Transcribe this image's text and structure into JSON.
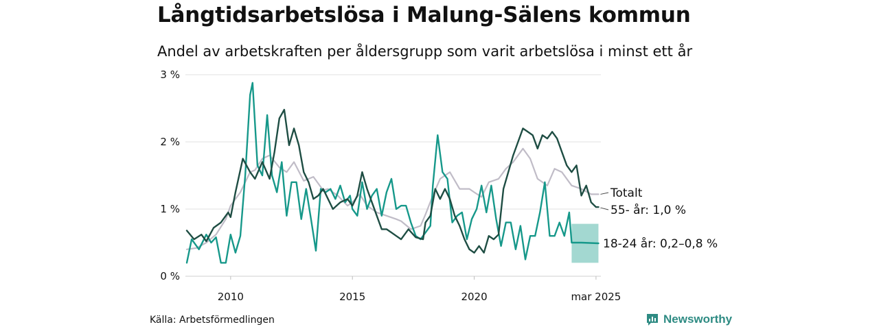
{
  "title": "Långtidsarbetslösa i Malung-Sälens kommun",
  "subtitle": "Andel av arbetskraften per åldersgrupp som varit arbetslösa i minst ett år",
  "source": "Källa: Arbetsförmedlingen",
  "brand": {
    "name": "Newsworthy",
    "icon": "bar-chart-speech-bubble-icon",
    "color": "#2e8b83"
  },
  "chart_data": {
    "type": "line",
    "ylim": [
      0,
      3
    ],
    "xlim": [
      2008.2,
      2025.2
    ],
    "y_ticks": [
      {
        "value": 0,
        "label": "0 %"
      },
      {
        "value": 1,
        "label": "1 %"
      },
      {
        "value": 2,
        "label": "2 %"
      },
      {
        "value": 3,
        "label": "3 %"
      }
    ],
    "x_ticks": [
      {
        "value": 2010,
        "label": "2010"
      },
      {
        "value": 2015,
        "label": "2015"
      },
      {
        "value": 2020,
        "label": "2020"
      },
      {
        "value": 2025,
        "label": "mar 2025"
      }
    ],
    "grid": true,
    "series": [
      {
        "id": "totalt",
        "name": "Totalt",
        "label": "Totalt",
        "color": "#c0bcc7",
        "points": [
          [
            2008.2,
            0.4
          ],
          [
            2008.6,
            0.42
          ],
          [
            2009.0,
            0.5
          ],
          [
            2009.4,
            0.62
          ],
          [
            2009.8,
            0.85
          ],
          [
            2010.0,
            1.05
          ],
          [
            2010.4,
            1.25
          ],
          [
            2010.8,
            1.55
          ],
          [
            2011.0,
            1.58
          ],
          [
            2011.3,
            1.75
          ],
          [
            2011.6,
            1.8
          ],
          [
            2012.0,
            1.62
          ],
          [
            2012.3,
            1.55
          ],
          [
            2012.6,
            1.7
          ],
          [
            2013.0,
            1.42
          ],
          [
            2013.4,
            1.48
          ],
          [
            2013.8,
            1.28
          ],
          [
            2014.0,
            1.3
          ],
          [
            2014.4,
            1.2
          ],
          [
            2014.8,
            1.05
          ],
          [
            2015.0,
            1.1
          ],
          [
            2015.3,
            1.22
          ],
          [
            2015.6,
            1.05
          ],
          [
            2016.0,
            0.95
          ],
          [
            2016.4,
            0.9
          ],
          [
            2016.8,
            0.85
          ],
          [
            2017.0,
            0.82
          ],
          [
            2017.4,
            0.7
          ],
          [
            2017.8,
            0.75
          ],
          [
            2018.0,
            0.92
          ],
          [
            2018.3,
            1.2
          ],
          [
            2018.6,
            1.45
          ],
          [
            2019.0,
            1.55
          ],
          [
            2019.4,
            1.3
          ],
          [
            2019.8,
            1.3
          ],
          [
            2020.0,
            1.25
          ],
          [
            2020.3,
            1.18
          ],
          [
            2020.6,
            1.4
          ],
          [
            2021.0,
            1.45
          ],
          [
            2021.3,
            1.6
          ],
          [
            2021.6,
            1.7
          ],
          [
            2022.0,
            1.9
          ],
          [
            2022.3,
            1.75
          ],
          [
            2022.6,
            1.45
          ],
          [
            2023.0,
            1.35
          ],
          [
            2023.3,
            1.6
          ],
          [
            2023.6,
            1.55
          ],
          [
            2024.0,
            1.35
          ],
          [
            2024.4,
            1.3
          ],
          [
            2024.8,
            1.22
          ],
          [
            2025.1,
            1.22
          ]
        ]
      },
      {
        "id": "55plus",
        "name": "55- år",
        "label": "55- år: 1,0 %",
        "color": "#1e4d43",
        "points": [
          [
            2008.2,
            0.68
          ],
          [
            2008.5,
            0.55
          ],
          [
            2008.8,
            0.62
          ],
          [
            2009.0,
            0.52
          ],
          [
            2009.3,
            0.72
          ],
          [
            2009.6,
            0.8
          ],
          [
            2009.9,
            0.95
          ],
          [
            2010.0,
            0.88
          ],
          [
            2010.2,
            1.25
          ],
          [
            2010.5,
            1.75
          ],
          [
            2010.8,
            1.55
          ],
          [
            2011.0,
            1.45
          ],
          [
            2011.3,
            1.7
          ],
          [
            2011.6,
            1.45
          ],
          [
            2011.8,
            1.85
          ],
          [
            2012.0,
            2.35
          ],
          [
            2012.2,
            2.48
          ],
          [
            2012.4,
            1.95
          ],
          [
            2012.6,
            2.2
          ],
          [
            2012.8,
            1.95
          ],
          [
            2013.0,
            1.55
          ],
          [
            2013.2,
            1.4
          ],
          [
            2013.4,
            1.15
          ],
          [
            2013.6,
            1.2
          ],
          [
            2013.8,
            1.3
          ],
          [
            2014.0,
            1.15
          ],
          [
            2014.2,
            1.0
          ],
          [
            2014.5,
            1.1
          ],
          [
            2014.8,
            1.15
          ],
          [
            2015.0,
            1.05
          ],
          [
            2015.2,
            1.2
          ],
          [
            2015.4,
            1.55
          ],
          [
            2015.6,
            1.3
          ],
          [
            2015.8,
            1.1
          ],
          [
            2016.0,
            0.9
          ],
          [
            2016.2,
            0.7
          ],
          [
            2016.4,
            0.7
          ],
          [
            2016.6,
            0.65
          ],
          [
            2016.8,
            0.6
          ],
          [
            2017.0,
            0.55
          ],
          [
            2017.3,
            0.7
          ],
          [
            2017.6,
            0.58
          ],
          [
            2017.9,
            0.55
          ],
          [
            2018.0,
            0.8
          ],
          [
            2018.2,
            0.9
          ],
          [
            2018.4,
            1.3
          ],
          [
            2018.6,
            1.15
          ],
          [
            2018.8,
            1.3
          ],
          [
            2019.0,
            1.15
          ],
          [
            2019.2,
            0.9
          ],
          [
            2019.4,
            0.75
          ],
          [
            2019.6,
            0.55
          ],
          [
            2019.8,
            0.4
          ],
          [
            2020.0,
            0.35
          ],
          [
            2020.2,
            0.45
          ],
          [
            2020.4,
            0.35
          ],
          [
            2020.6,
            0.6
          ],
          [
            2020.8,
            0.55
          ],
          [
            2021.0,
            0.62
          ],
          [
            2021.2,
            1.3
          ],
          [
            2021.4,
            1.55
          ],
          [
            2021.6,
            1.8
          ],
          [
            2021.8,
            2.0
          ],
          [
            2022.0,
            2.2
          ],
          [
            2022.2,
            2.15
          ],
          [
            2022.4,
            2.1
          ],
          [
            2022.6,
            1.9
          ],
          [
            2022.8,
            2.1
          ],
          [
            2023.0,
            2.05
          ],
          [
            2023.2,
            2.15
          ],
          [
            2023.4,
            2.05
          ],
          [
            2023.6,
            1.85
          ],
          [
            2023.8,
            1.65
          ],
          [
            2024.0,
            1.55
          ],
          [
            2024.2,
            1.65
          ],
          [
            2024.4,
            1.2
          ],
          [
            2024.6,
            1.35
          ],
          [
            2024.8,
            1.1
          ],
          [
            2025.0,
            1.03
          ],
          [
            2025.1,
            1.03
          ]
        ]
      },
      {
        "id": "18-24",
        "name": "18-24 år",
        "label": "18-24 år: 0,2–0,8 %",
        "color": "#16988a",
        "points": [
          [
            2008.2,
            0.2
          ],
          [
            2008.4,
            0.55
          ],
          [
            2008.7,
            0.4
          ],
          [
            2009.0,
            0.62
          ],
          [
            2009.2,
            0.5
          ],
          [
            2009.4,
            0.58
          ],
          [
            2009.6,
            0.2
          ],
          [
            2009.8,
            0.2
          ],
          [
            2010.0,
            0.62
          ],
          [
            2010.2,
            0.35
          ],
          [
            2010.4,
            0.6
          ],
          [
            2010.6,
            1.5
          ],
          [
            2010.8,
            2.7
          ],
          [
            2010.9,
            2.88
          ],
          [
            2011.1,
            1.65
          ],
          [
            2011.3,
            1.5
          ],
          [
            2011.5,
            2.4
          ],
          [
            2011.7,
            1.5
          ],
          [
            2011.9,
            1.25
          ],
          [
            2012.1,
            1.7
          ],
          [
            2012.3,
            0.9
          ],
          [
            2012.5,
            1.4
          ],
          [
            2012.7,
            1.4
          ],
          [
            2012.9,
            0.85
          ],
          [
            2013.1,
            1.3
          ],
          [
            2013.3,
            0.85
          ],
          [
            2013.5,
            0.38
          ],
          [
            2013.7,
            1.3
          ],
          [
            2013.9,
            1.25
          ],
          [
            2014.1,
            1.3
          ],
          [
            2014.3,
            1.15
          ],
          [
            2014.5,
            1.35
          ],
          [
            2014.7,
            1.1
          ],
          [
            2014.9,
            1.2
          ],
          [
            2015.0,
            1.0
          ],
          [
            2015.2,
            0.9
          ],
          [
            2015.4,
            1.4
          ],
          [
            2015.6,
            1.0
          ],
          [
            2015.8,
            1.2
          ],
          [
            2016.0,
            1.3
          ],
          [
            2016.2,
            0.9
          ],
          [
            2016.4,
            1.25
          ],
          [
            2016.6,
            1.45
          ],
          [
            2016.8,
            1.0
          ],
          [
            2017.0,
            1.05
          ],
          [
            2017.2,
            1.05
          ],
          [
            2017.4,
            0.8
          ],
          [
            2017.6,
            0.6
          ],
          [
            2017.8,
            0.55
          ],
          [
            2018.0,
            0.65
          ],
          [
            2018.2,
            0.75
          ],
          [
            2018.3,
            1.35
          ],
          [
            2018.5,
            2.1
          ],
          [
            2018.7,
            1.55
          ],
          [
            2018.9,
            1.45
          ],
          [
            2019.1,
            0.8
          ],
          [
            2019.3,
            0.9
          ],
          [
            2019.5,
            0.95
          ],
          [
            2019.7,
            0.55
          ],
          [
            2019.9,
            0.85
          ],
          [
            2020.1,
            1.0
          ],
          [
            2020.3,
            1.35
          ],
          [
            2020.5,
            0.95
          ],
          [
            2020.7,
            1.35
          ],
          [
            2020.9,
            0.85
          ],
          [
            2021.1,
            0.45
          ],
          [
            2021.3,
            0.8
          ],
          [
            2021.5,
            0.8
          ],
          [
            2021.7,
            0.4
          ],
          [
            2021.9,
            0.75
          ],
          [
            2022.1,
            0.25
          ],
          [
            2022.3,
            0.6
          ],
          [
            2022.5,
            0.6
          ],
          [
            2022.7,
            0.95
          ],
          [
            2022.9,
            1.4
          ],
          [
            2023.1,
            0.6
          ],
          [
            2023.3,
            0.6
          ],
          [
            2023.5,
            0.8
          ],
          [
            2023.7,
            0.6
          ],
          [
            2023.9,
            0.95
          ],
          [
            2024.0,
            0.5
          ],
          [
            2024.4,
            0.5
          ],
          [
            2025.1,
            0.49
          ]
        ],
        "interval": {
          "from": 2024.0,
          "to": 2025.1,
          "low": 0.2,
          "high": 0.78
        }
      }
    ]
  }
}
